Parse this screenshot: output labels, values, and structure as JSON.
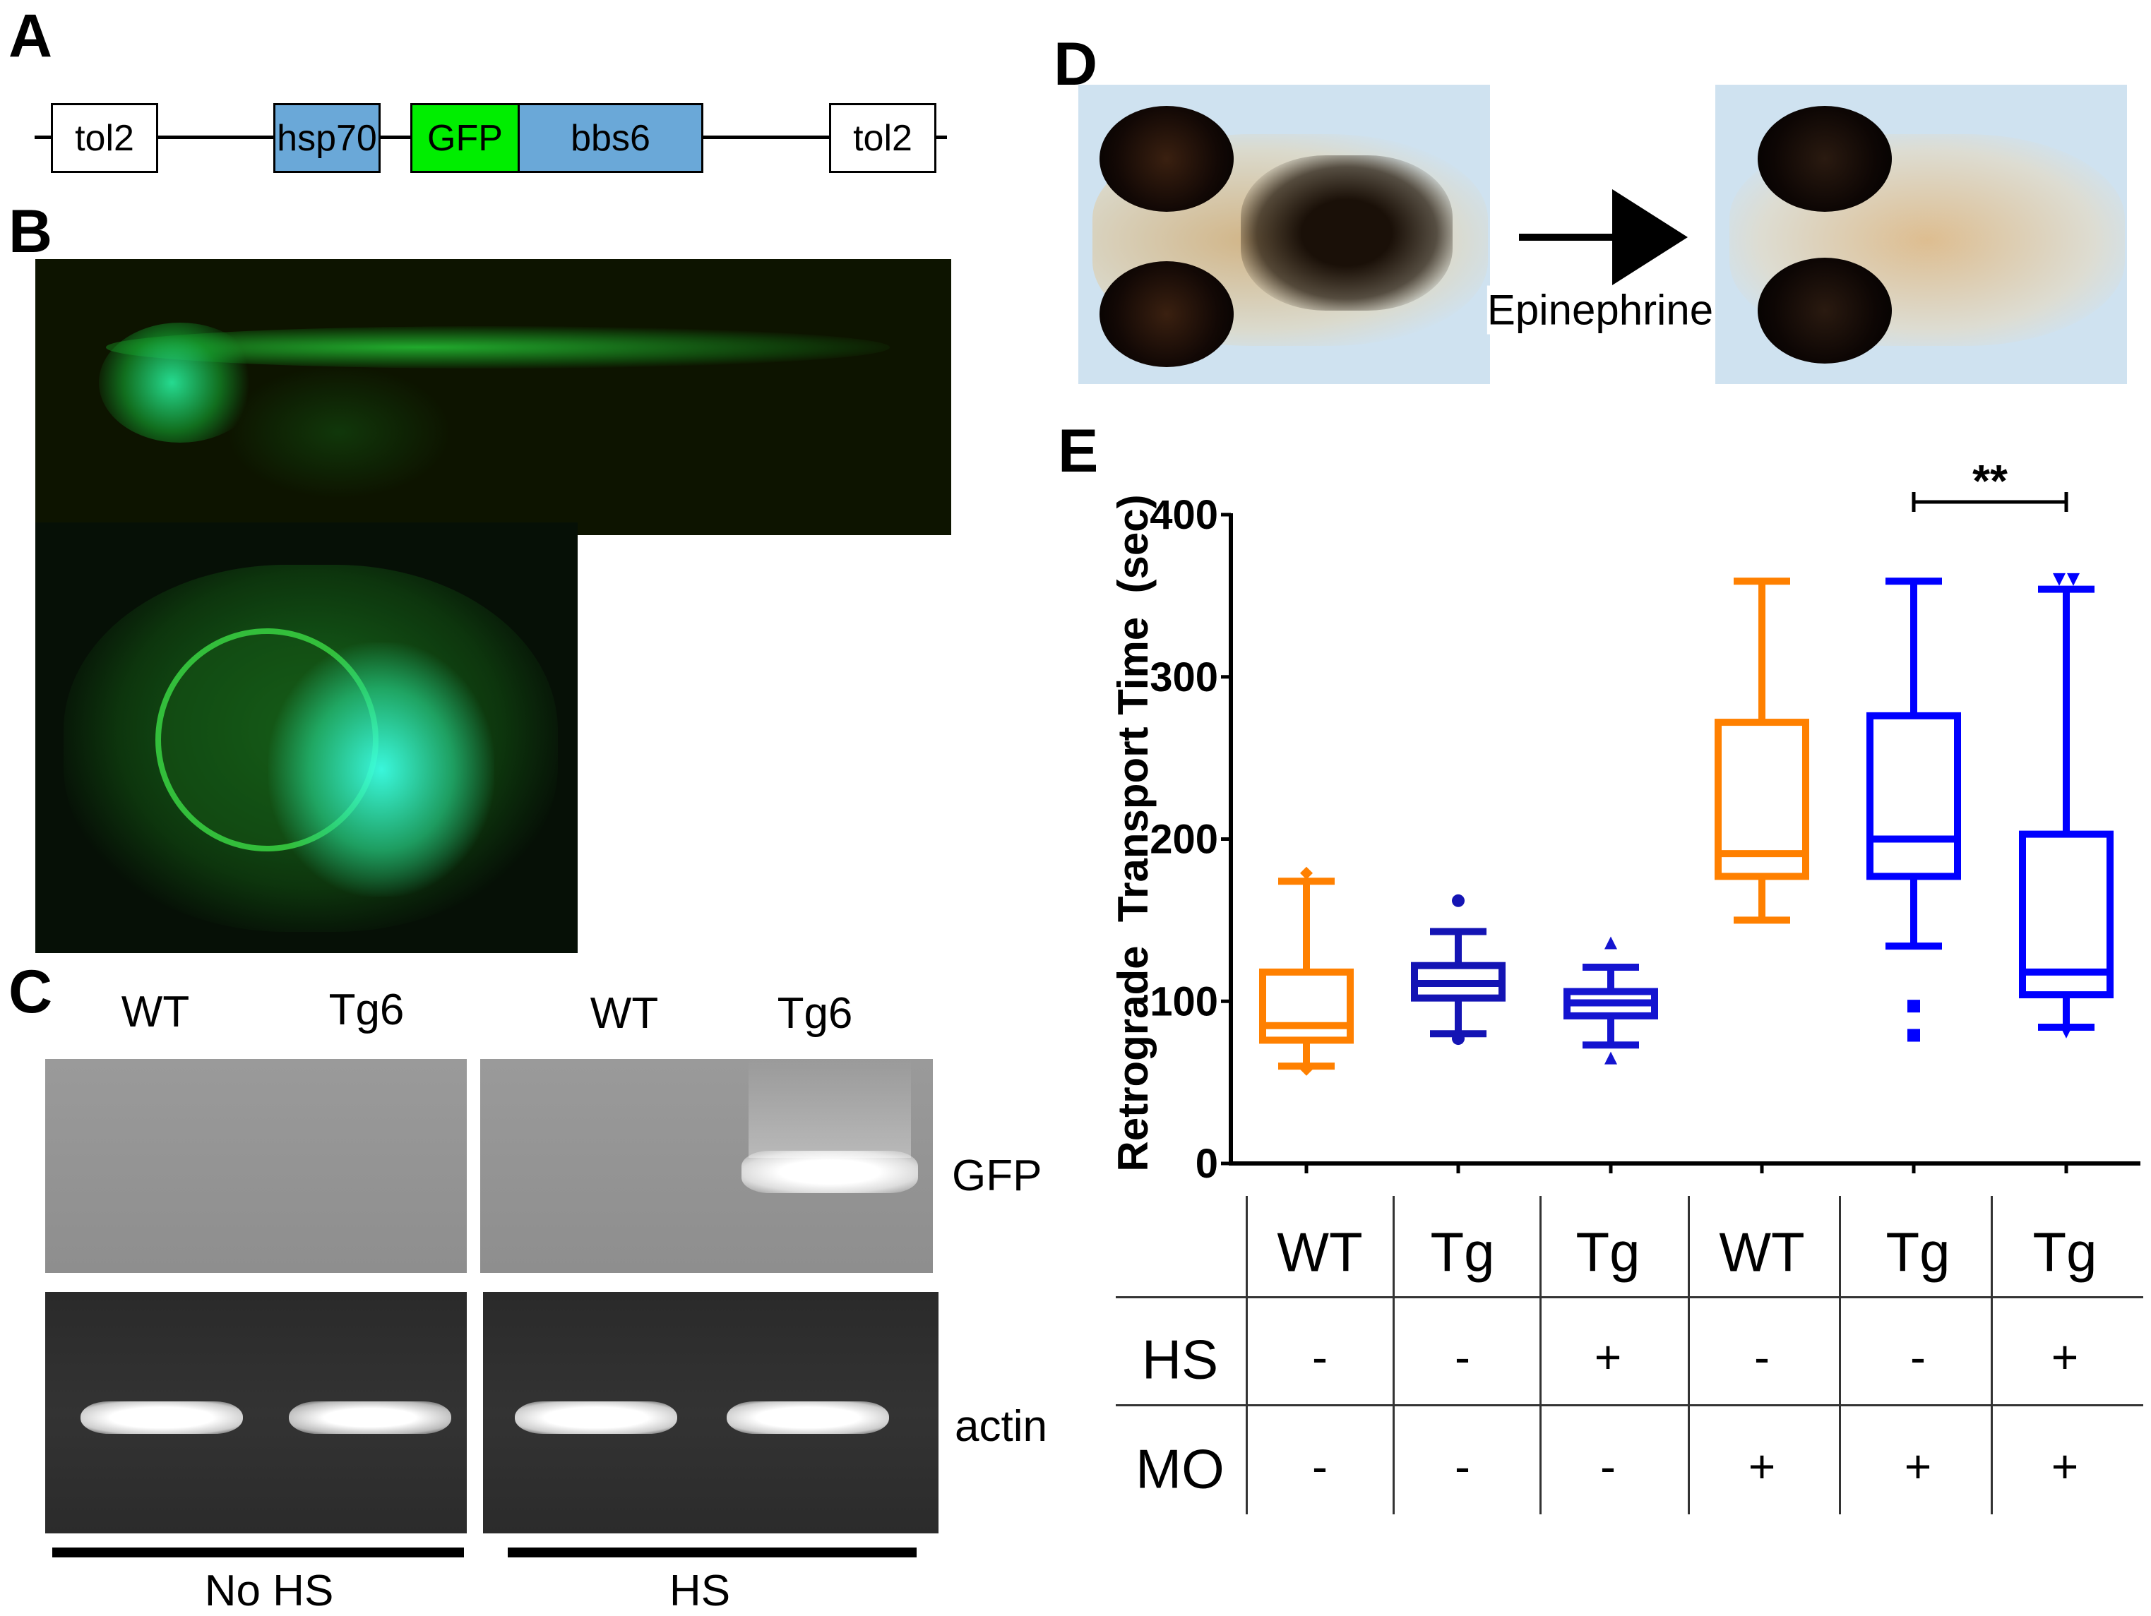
{
  "panels": {
    "a": "A",
    "b": "B",
    "c": "C",
    "d": "D",
    "e": "E"
  },
  "construct": {
    "elements": [
      "tol2",
      "hsp70",
      "GFP",
      "bbs6",
      "tol2"
    ],
    "colors": {
      "tol2": "#ffffff",
      "hsp70": "#6aa8d8",
      "GFP": "#00ee00",
      "bbs6": "#6aa8d8"
    }
  },
  "gel": {
    "lanes": [
      "WT",
      "Tg6",
      "WT",
      "Tg6"
    ],
    "rows": [
      "GFP",
      "actin"
    ],
    "groups": [
      "No HS",
      "HS"
    ]
  },
  "treatment": {
    "label": "Epinephrine"
  },
  "chart_data": {
    "type": "box",
    "ylabel": "Retrograde  Transport Time  (sec)",
    "xlabel": "",
    "ylim": [
      0,
      400
    ],
    "yticks": [
      "0",
      "100",
      "200",
      "300",
      "400"
    ],
    "grid": false,
    "categories": [
      "WT",
      "Tg",
      "Tg",
      "WT",
      "Tg",
      "Tg"
    ],
    "boxes": [
      {
        "name": "WT HS- MO-",
        "color": "#ff8000",
        "marker": "diamond",
        "whisker_low": 60,
        "q1": 76,
        "median": 85,
        "q3": 118,
        "whisker_high": 174,
        "outliers": [
          58,
          179
        ]
      },
      {
        "name": "Tg HS- MO-",
        "color": "#1414b4",
        "marker": "circle",
        "whisker_low": 80,
        "q1": 102,
        "median": 111,
        "q3": 122,
        "whisker_high": 143,
        "outliers": [
          77,
          162
        ]
      },
      {
        "name": "Tg HS+ MO-",
        "color": "#1414d0",
        "marker": "triangle",
        "whisker_low": 73,
        "q1": 91,
        "median": 99,
        "q3": 106,
        "whisker_high": 121,
        "outliers": [
          65,
          136
        ]
      },
      {
        "name": "WT HS- MO+",
        "color": "#ff8000",
        "marker": "none",
        "whisker_low": 150,
        "q1": 177,
        "median": 191,
        "q3": 272,
        "whisker_high": 359,
        "outliers": []
      },
      {
        "name": "Tg HS- MO+",
        "color": "#0000ff",
        "marker": "square",
        "whisker_low": 134,
        "q1": 177,
        "median": 200,
        "q3": 276,
        "whisker_high": 359,
        "outliers": [
          79,
          97
        ]
      },
      {
        "name": "Tg HS+ MO+",
        "color": "#0000ff",
        "marker": "triangle-down",
        "whisker_low": 84,
        "q1": 104,
        "median": 118,
        "q3": 203,
        "whisker_high": 354,
        "outliers": [
          81,
          360,
          360
        ]
      }
    ],
    "annotations": [
      {
        "text": "**",
        "between": [
          5,
          6
        ]
      }
    ]
  },
  "table": {
    "rows": [
      {
        "label": "HS",
        "values": [
          "-",
          "-",
          "+",
          "-",
          "-",
          "+"
        ]
      },
      {
        "label": "MO",
        "values": [
          "-",
          "-",
          "-",
          "+",
          "+",
          "+"
        ]
      }
    ]
  }
}
